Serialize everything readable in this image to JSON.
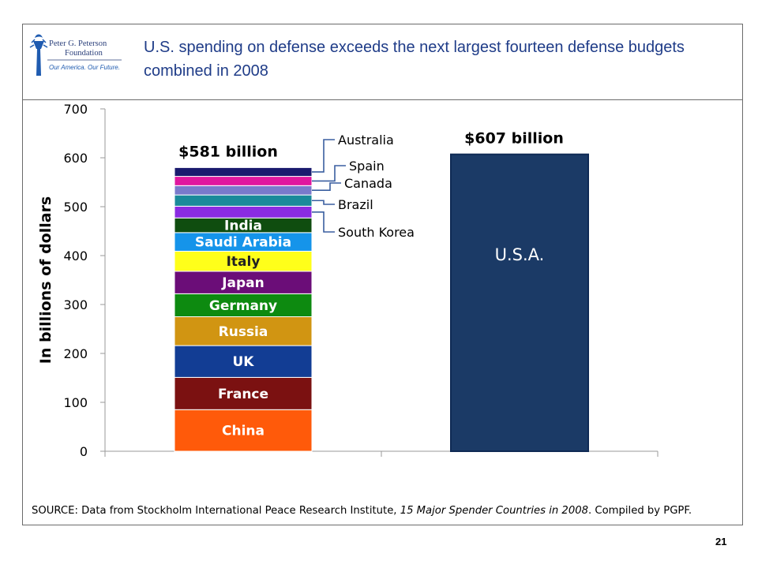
{
  "header": {
    "title": "U.S. spending on defense exceeds the next largest fourteen defense budgets combined in 2008",
    "logo": {
      "line1": "Peter G. Peterson",
      "line2": "Foundation",
      "tagline": "Our America. Our Future."
    }
  },
  "chart_data": {
    "type": "bar",
    "stacked": true,
    "ylabel": "In billions of dollars",
    "ylim": [
      0,
      700
    ],
    "yticks": [
      0,
      100,
      200,
      300,
      400,
      500,
      600,
      700
    ],
    "grid": false,
    "columns": [
      {
        "total_label": "$581 billion",
        "segments": [
          {
            "name": "China",
            "value": 85,
            "color": "#ff5a0a",
            "label_inside": true
          },
          {
            "name": "France",
            "value": 66,
            "color": "#7b1111",
            "label_inside": true
          },
          {
            "name": "UK",
            "value": 65,
            "color": "#123d94",
            "label_inside": true
          },
          {
            "name": "Russia",
            "value": 59,
            "color": "#d19512",
            "label_inside": true
          },
          {
            "name": "Germany",
            "value": 47,
            "color": "#0d8a10",
            "label_inside": true
          },
          {
            "name": "Japan",
            "value": 46,
            "color": "#6b0d78",
            "label_inside": true
          },
          {
            "name": "Italy",
            "value": 41,
            "color": "#ffff1a",
            "label_inside": true
          },
          {
            "name": "Saudi Arabia",
            "value": 38,
            "color": "#1594ea",
            "label_inside": true
          },
          {
            "name": "India",
            "value": 30,
            "color": "#0f4d0f",
            "label_inside": true
          },
          {
            "name": "South Korea",
            "value": 24,
            "color": "#8a2be2",
            "label_inside": false
          },
          {
            "name": "Brazil",
            "value": 23,
            "color": "#1b8a9a",
            "label_inside": false
          },
          {
            "name": "Canada",
            "value": 19,
            "color": "#7a7acb",
            "label_inside": false
          },
          {
            "name": "Spain",
            "value": 19,
            "color": "#e0169f",
            "label_inside": false
          },
          {
            "name": "Australia",
            "value": 18,
            "color": "#1a1a6e",
            "label_inside": false
          }
        ]
      },
      {
        "total_label": "$607 billion",
        "segments": [
          {
            "name": "U.S.A.",
            "value": 607,
            "color": "#1b3a66",
            "label_inside": true
          }
        ]
      }
    ]
  },
  "source": {
    "prefix": "SOURCE: Data from Stockholm International Peace Research Institute, ",
    "italic": "15 Major Spender Countries in 2008",
    "suffix": ". Compiled by PGPF."
  },
  "page_number": "21"
}
